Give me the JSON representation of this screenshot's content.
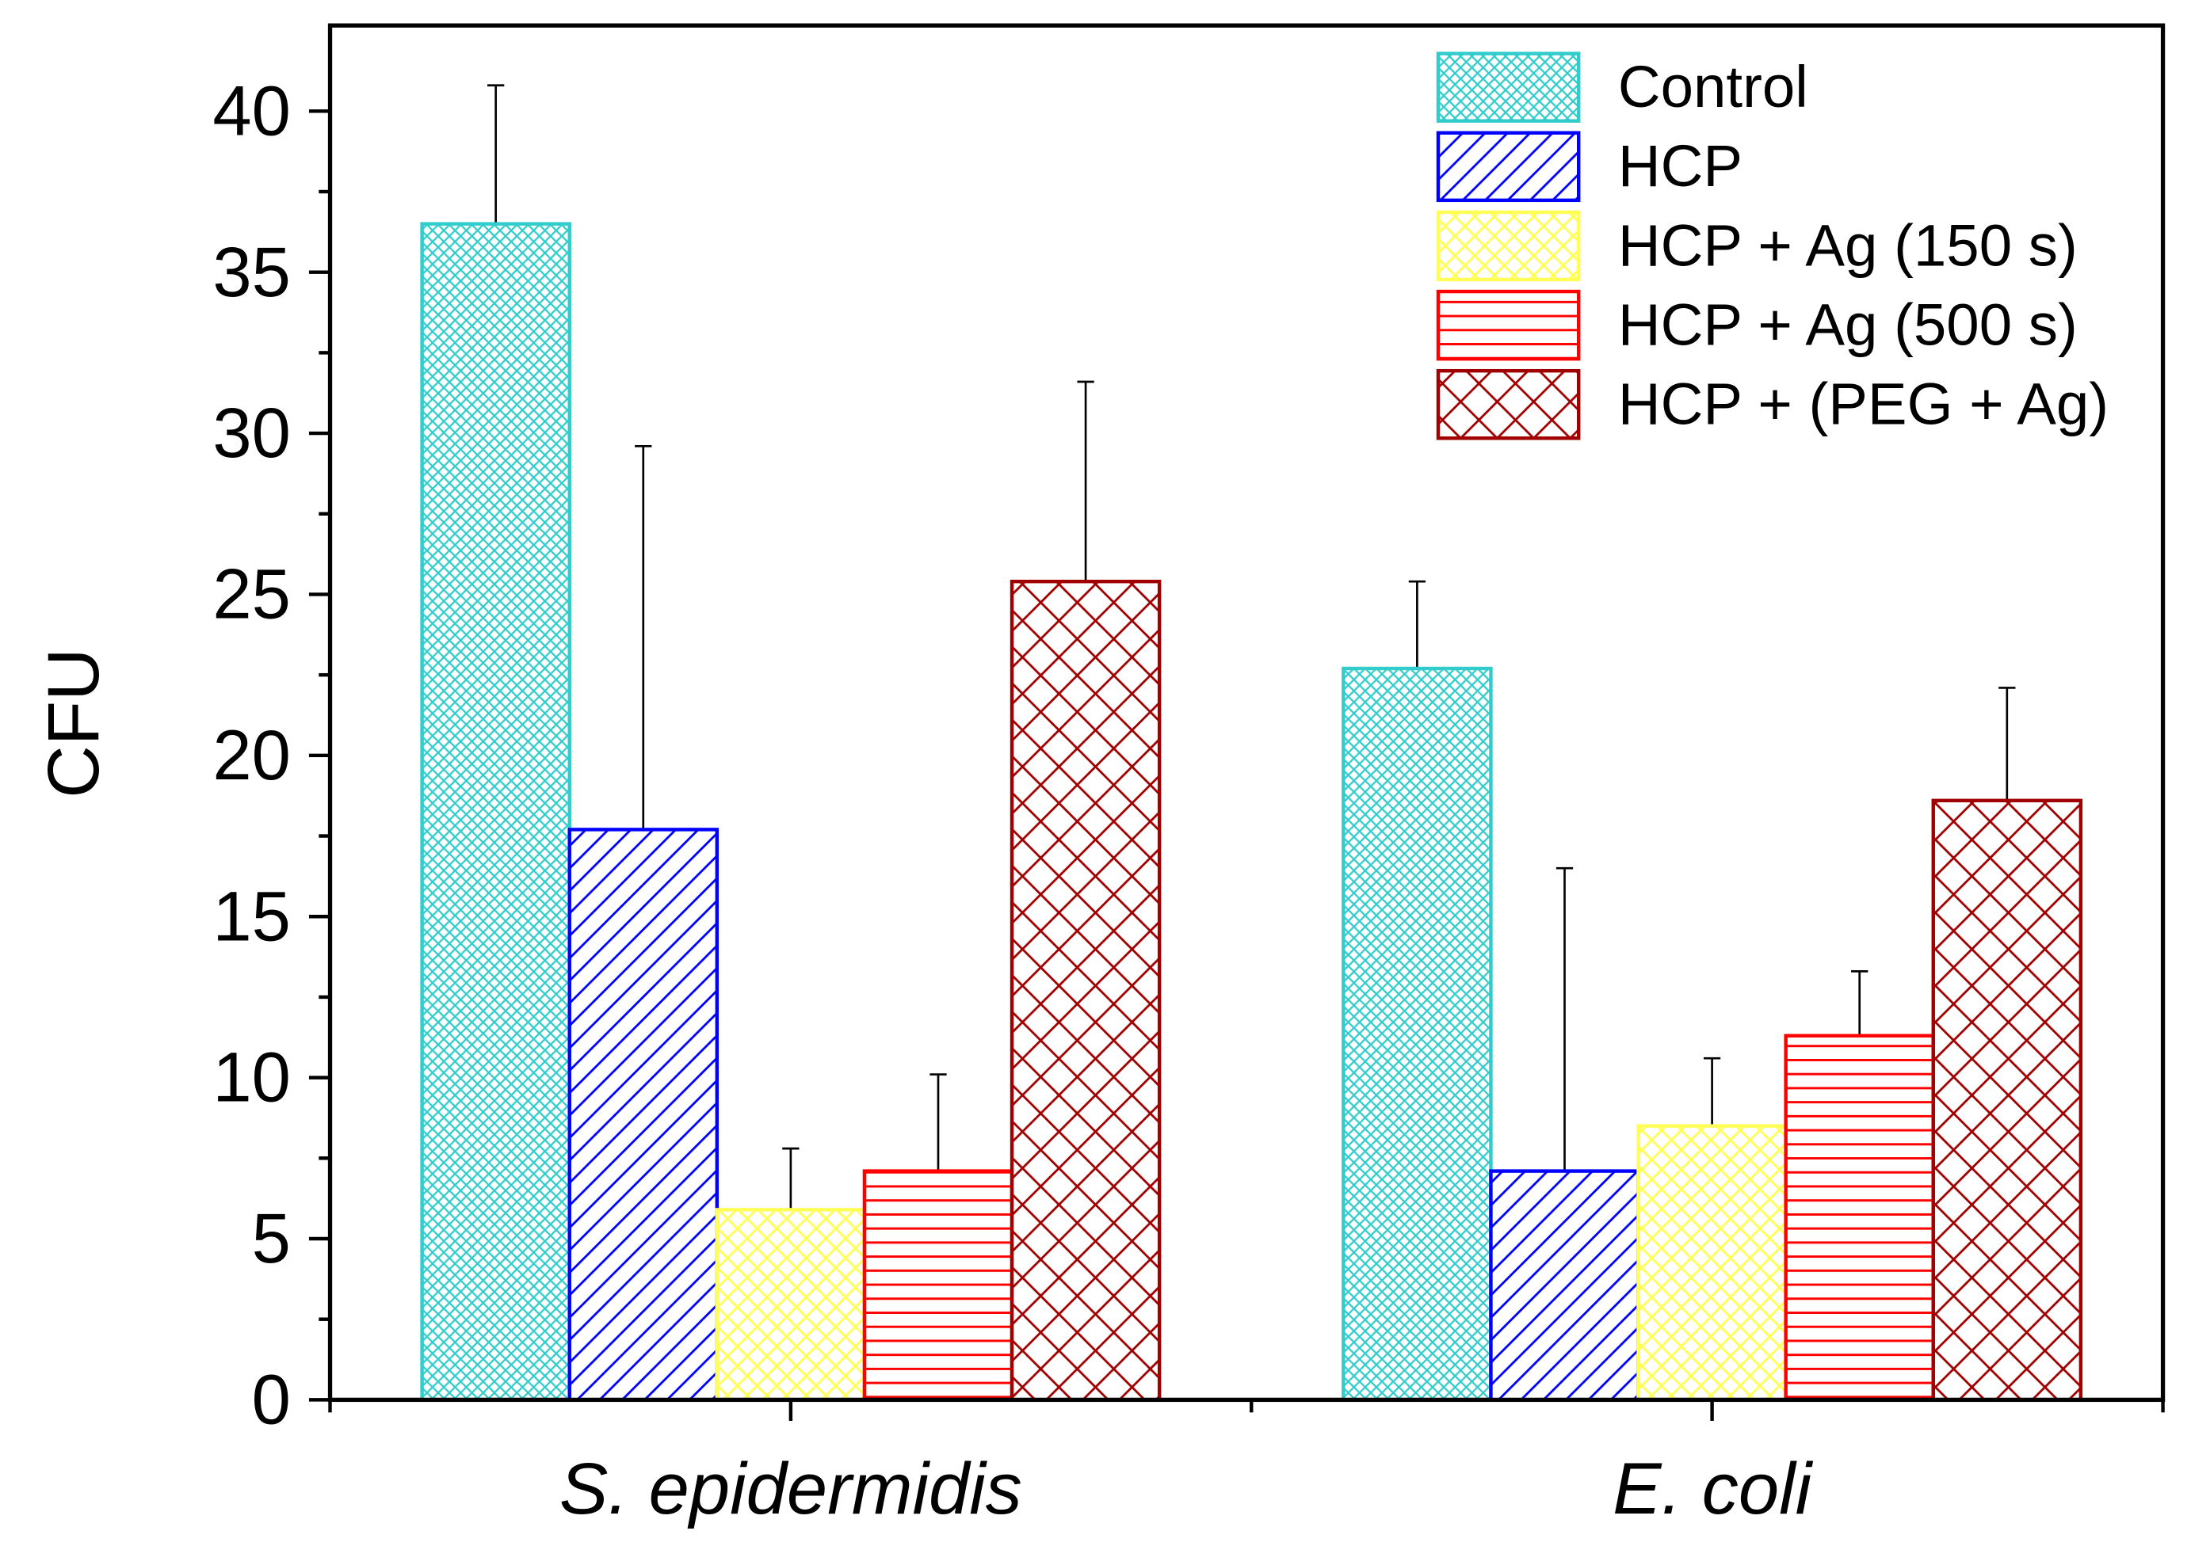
{
  "chart_data": {
    "type": "bar",
    "title": "",
    "xlabel": "",
    "ylabel": "CFU",
    "ylim": [
      0,
      42
    ],
    "yticks": [
      "0",
      "5",
      "10",
      "15",
      "20",
      "25",
      "30",
      "35",
      "40"
    ],
    "categories": [
      "S. epidermidis",
      "E. coli"
    ],
    "legend_position": "top-right",
    "grid": false,
    "series": [
      {
        "name": "Control",
        "color": "#33CCCC",
        "pattern": "fine-crosshatch",
        "values": [
          36.5,
          22.7
        ],
        "errors": [
          4.3,
          2.7
        ]
      },
      {
        "name": "HCP",
        "color": "#0000FF",
        "pattern": "diagonal",
        "values": [
          17.7,
          7.1
        ],
        "errors": [
          11.9,
          9.4
        ]
      },
      {
        "name": "HCP + Ag (150 s)",
        "color": "#FFFF55",
        "pattern": "crosshatch",
        "values": [
          5.9,
          8.5
        ],
        "errors": [
          1.9,
          2.1
        ]
      },
      {
        "name": "HCP + Ag (500 s)",
        "color": "#FF0000",
        "pattern": "horizontal",
        "values": [
          7.1,
          11.3
        ],
        "errors": [
          3.0,
          2.0
        ]
      },
      {
        "name": "HCP + (PEG + Ag)",
        "color": "#A00000",
        "pattern": "coarse-crosshatch",
        "values": [
          25.4,
          18.6
        ],
        "errors": [
          6.2,
          3.5
        ]
      }
    ]
  }
}
